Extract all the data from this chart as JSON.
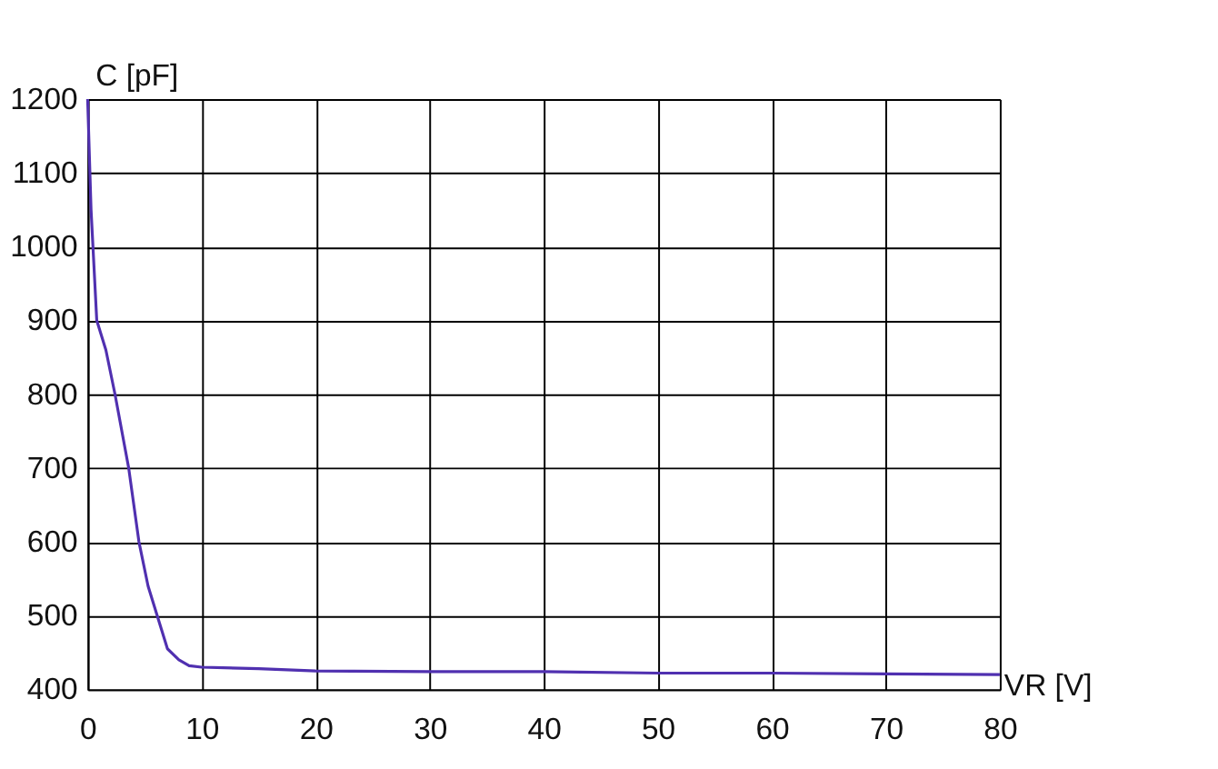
{
  "chart_data": {
    "type": "line",
    "xlabel": "VR [V]",
    "ylabel": "C [pF]",
    "series": [
      {
        "color": "#5030b0",
        "x": [
          0,
          0.3,
          0.8,
          1.6,
          2.4,
          3.6,
          4.5,
          5.3,
          6.1,
          7,
          8,
          8.9,
          10,
          15,
          20,
          30,
          40,
          50,
          60,
          70,
          80
        ],
        "values": [
          1200,
          1050,
          900,
          860,
          800,
          700,
          600,
          540,
          500,
          455,
          440,
          432,
          430,
          428,
          425,
          424,
          424,
          422,
          422,
          421,
          420
        ]
      }
    ],
    "xlim": [
      0,
      80
    ],
    "xticks": [
      0,
      10,
      20,
      30,
      40,
      50,
      60,
      70,
      80
    ],
    "ylim": [
      400,
      1200
    ],
    "yticks": [
      400,
      500,
      600,
      700,
      800,
      900,
      1000,
      1100,
      1200
    ],
    "grid": true,
    "marker": "none",
    "line_style": "solid"
  }
}
